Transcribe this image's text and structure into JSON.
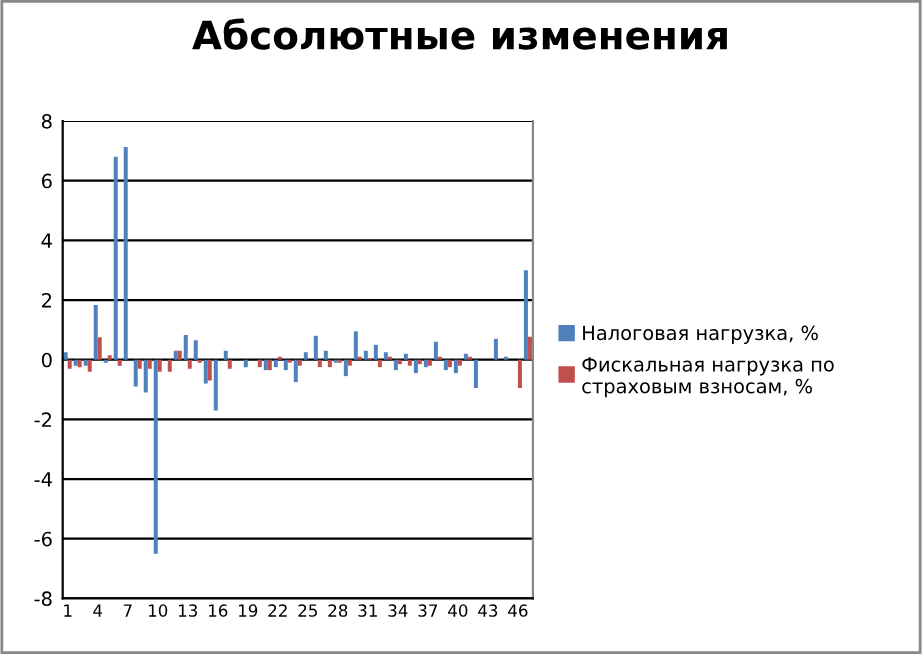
{
  "chart_data": {
    "type": "bar",
    "title": "Абсолютные изменения",
    "categories": [
      "1",
      null,
      null,
      "4",
      null,
      null,
      "7",
      null,
      null,
      "10",
      null,
      null,
      "13",
      null,
      null,
      "16",
      null,
      null,
      "19",
      null,
      null,
      "22",
      null,
      null,
      "25",
      null,
      null,
      "28",
      null,
      null,
      "31",
      null,
      null,
      "34",
      null,
      null,
      "37",
      null,
      null,
      "40",
      null,
      null,
      "43",
      null,
      null,
      "46",
      null
    ],
    "series": [
      {
        "name": "Налоговая нагрузка, %",
        "color": "#4f81bd",
        "values": [
          0.25,
          -0.2,
          -0.2,
          1.83,
          -0.1,
          6.8,
          7.13,
          -0.9,
          -1.1,
          -6.5,
          0,
          0.3,
          0.83,
          0.65,
          -0.8,
          -1.7,
          0.3,
          0,
          -0.25,
          0,
          -0.35,
          -0.25,
          -0.35,
          -0.75,
          0.25,
          0.8,
          0.3,
          -0.1,
          -0.55,
          0.95,
          0.3,
          0.5,
          0.25,
          -0.35,
          0.2,
          -0.45,
          -0.25,
          0.6,
          -0.35,
          -0.45,
          0.2,
          -0.95,
          0,
          0.7,
          0.1,
          0,
          3.0
        ]
      },
      {
        "name": "Фискальная нагрузка по страховым взносам, %",
        "color": "#c0504d",
        "values": [
          -0.3,
          -0.25,
          -0.4,
          0.75,
          0.15,
          -0.2,
          0,
          -0.3,
          -0.3,
          -0.4,
          -0.4,
          0.3,
          -0.3,
          -0.1,
          -0.7,
          0,
          -0.3,
          0,
          0,
          -0.25,
          -0.35,
          0.1,
          -0.1,
          -0.2,
          0,
          -0.25,
          -0.25,
          -0.1,
          -0.2,
          0.1,
          0.05,
          -0.25,
          0.1,
          -0.15,
          -0.2,
          -0.15,
          -0.2,
          0.1,
          -0.25,
          -0.2,
          0.1,
          0,
          0,
          0,
          0,
          -0.95,
          0.77
        ]
      }
    ],
    "ylim": [
      -8,
      8
    ],
    "yticks": [
      -8,
      -6,
      -4,
      -2,
      0,
      2,
      4,
      6,
      8
    ],
    "grid": "y",
    "legend": "right"
  }
}
